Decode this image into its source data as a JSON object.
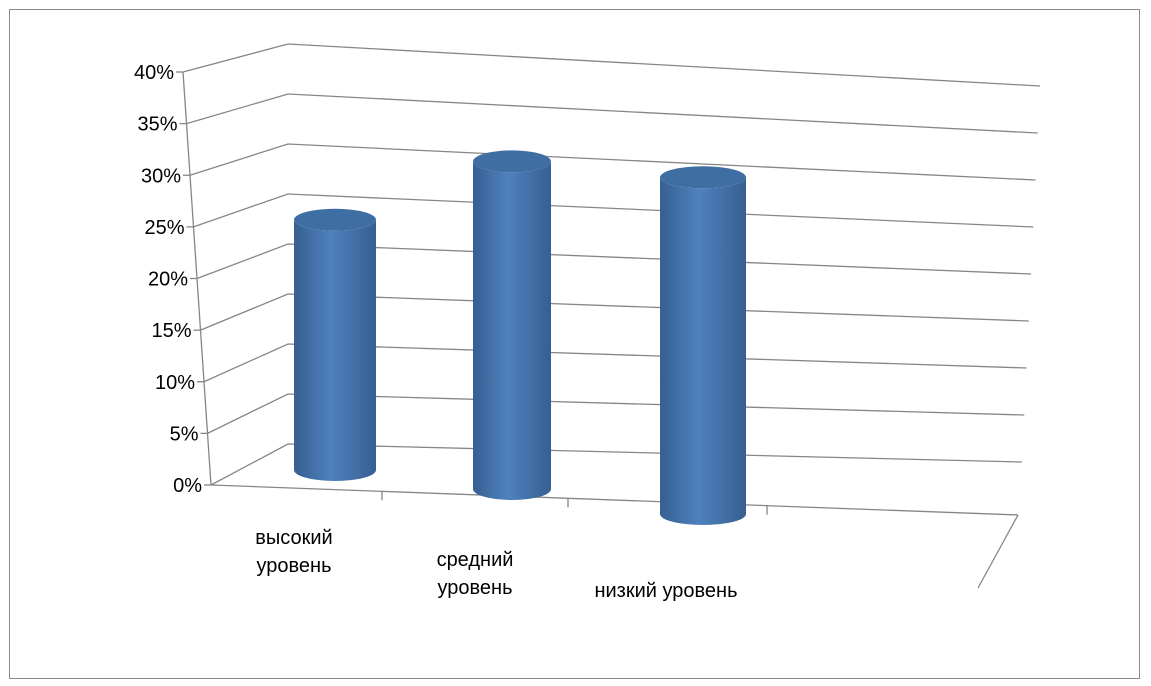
{
  "chart_data": {
    "type": "bar",
    "style": "3d-cylinder",
    "categories": [
      "высокий уровень",
      "средний уровень",
      "низкий уровень"
    ],
    "category_lines": [
      [
        "высокий",
        "уровень"
      ],
      [
        "средний",
        "уровень"
      ],
      [
        "низкий уровень"
      ]
    ],
    "series": [
      {
        "values": [
          27.5,
          36,
          37
        ]
      }
    ],
    "title": "",
    "xlabel": "",
    "ylabel": "",
    "ylim": [
      0,
      40
    ],
    "ytick_values": [
      0,
      5,
      10,
      15,
      20,
      25,
      30,
      35,
      40
    ],
    "ytick_labels": [
      "0%",
      "5%",
      "10%",
      "15%",
      "20%",
      "25%",
      "30%",
      "35%",
      "40%"
    ],
    "grid": true,
    "legend": "none",
    "colors": {
      "bar": "#4f81bd",
      "bar_dark": "#365f91",
      "bar_top": "#3f6ea3",
      "grid": "#868686"
    }
  }
}
